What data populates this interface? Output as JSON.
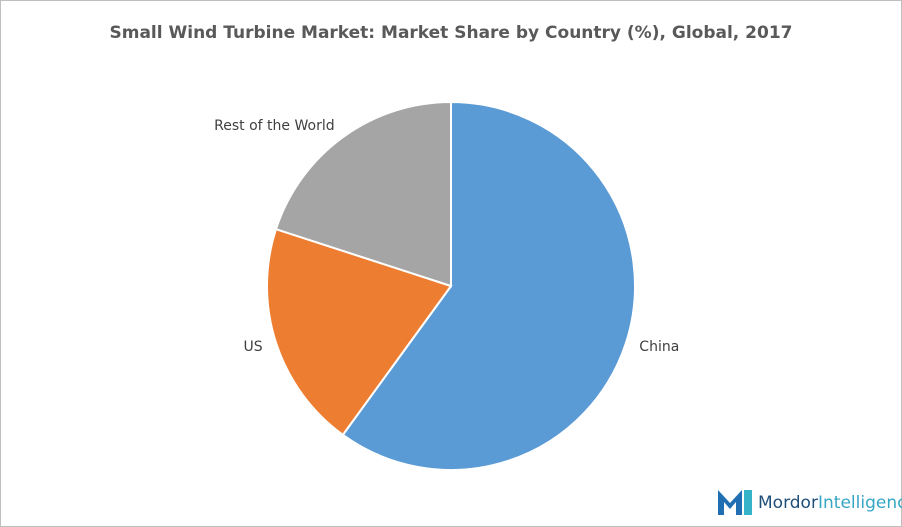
{
  "chart_data": {
    "type": "pie",
    "title": "Small Wind Turbine Market: Market Share by Country (%), Global, 2017",
    "categories": [
      "China",
      "US",
      "Rest of the World"
    ],
    "values": [
      60,
      20,
      20
    ],
    "colors": [
      "#5b9bd5",
      "#ed7d31",
      "#a5a5a5"
    ]
  },
  "logo": [
    "Mordor",
    "Intelligence"
  ]
}
